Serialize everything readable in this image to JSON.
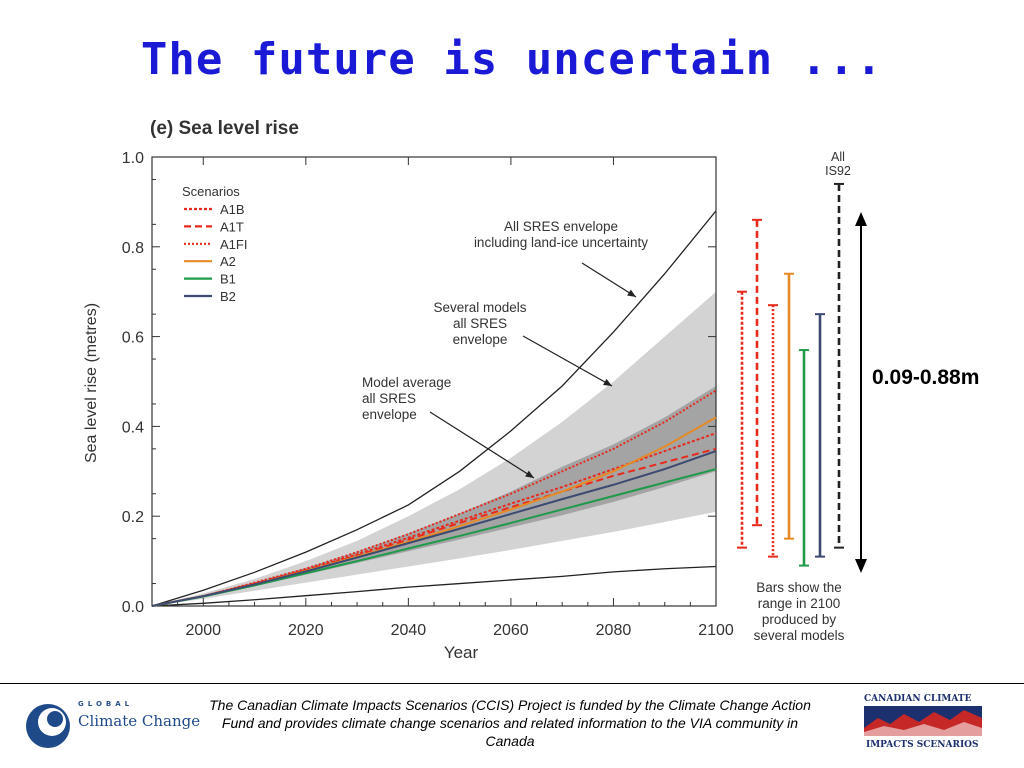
{
  "slide": {
    "title": "The future is uncertain ...",
    "callout_range": "0.09-0.88m",
    "footer": "The Canadian Climate Impacts Scenarios (CCIS) Project is funded by the Climate Change Action Fund and provides climate change scenarios and related information to the VIA community in Canada"
  },
  "logos": {
    "left_small": "GLOBAL",
    "left_main": "Climate Change",
    "right_top": "CANADIAN CLIMATE",
    "right_bottom": "IMPACTS SCENARIOS"
  },
  "chart_data": {
    "type": "line",
    "title": "(e) Sea level rise",
    "xlabel": "Year",
    "ylabel": "Sea level rise (metres)",
    "xlim": [
      1990,
      2100
    ],
    "ylim": [
      0,
      1.0
    ],
    "x_ticks": [
      2000,
      2020,
      2040,
      2060,
      2080,
      2100
    ],
    "y_ticks": [
      0.0,
      0.2,
      0.4,
      0.6,
      0.8,
      1.0
    ],
    "y_tick_labels": [
      "0.0",
      "0.2",
      "0.4",
      "0.6",
      "0.8",
      "1.0"
    ],
    "legend_title": "Scenarios",
    "legend_position": "top-left",
    "x": [
      1990,
      2000,
      2010,
      2020,
      2030,
      2040,
      2050,
      2060,
      2070,
      2080,
      2090,
      2100
    ],
    "series": [
      {
        "name": "A1B",
        "color": "#e8291c",
        "dash": "dotted",
        "values": [
          0,
          0.022,
          0.05,
          0.08,
          0.115,
          0.152,
          0.19,
          0.228,
          0.265,
          0.305,
          0.345,
          0.385
        ]
      },
      {
        "name": "A1T",
        "color": "#e8291c",
        "dash": "dashed",
        "values": [
          0,
          0.022,
          0.05,
          0.08,
          0.112,
          0.148,
          0.185,
          0.22,
          0.255,
          0.29,
          0.32,
          0.35
        ]
      },
      {
        "name": "A1FI",
        "color": "#e8291c",
        "dash": "dotted-fine",
        "values": [
          0,
          0.022,
          0.052,
          0.083,
          0.12,
          0.16,
          0.205,
          0.25,
          0.3,
          0.35,
          0.41,
          0.48
        ]
      },
      {
        "name": "A2",
        "color": "#e58a26",
        "dash": "solid",
        "values": [
          0,
          0.022,
          0.048,
          0.078,
          0.11,
          0.143,
          0.178,
          0.215,
          0.255,
          0.3,
          0.355,
          0.42
        ]
      },
      {
        "name": "B1",
        "color": "#1f9a4a",
        "dash": "solid",
        "values": [
          0,
          0.021,
          0.046,
          0.073,
          0.1,
          0.128,
          0.156,
          0.185,
          0.215,
          0.245,
          0.275,
          0.305
        ]
      },
      {
        "name": "B2",
        "color": "#3d4a72",
        "dash": "solid",
        "values": [
          0,
          0.022,
          0.048,
          0.077,
          0.108,
          0.14,
          0.172,
          0.205,
          0.238,
          0.27,
          0.305,
          0.345
        ]
      }
    ],
    "envelopes": {
      "full_envelope_upper": [
        0,
        0.035,
        0.075,
        0.12,
        0.17,
        0.225,
        0.3,
        0.39,
        0.49,
        0.61,
        0.74,
        0.88
      ],
      "full_envelope_lower": [
        0,
        0.006,
        0.014,
        0.023,
        0.032,
        0.042,
        0.05,
        0.058,
        0.066,
        0.076,
        0.083,
        0.088
      ],
      "several_models_upper": [
        0,
        0.028,
        0.06,
        0.1,
        0.145,
        0.2,
        0.26,
        0.33,
        0.41,
        0.5,
        0.6,
        0.7
      ],
      "several_models_lower": [
        0,
        0.016,
        0.034,
        0.052,
        0.07,
        0.088,
        0.106,
        0.125,
        0.145,
        0.165,
        0.187,
        0.21
      ],
      "model_average_upper": [
        0,
        0.024,
        0.053,
        0.085,
        0.121,
        0.162,
        0.206,
        0.255,
        0.31,
        0.36,
        0.42,
        0.49
      ],
      "model_average_lower": [
        0,
        0.02,
        0.044,
        0.07,
        0.096,
        0.122,
        0.148,
        0.175,
        0.202,
        0.232,
        0.265,
        0.3
      ]
    },
    "annotations": [
      {
        "text": "All SRES envelope including land-ice uncertainty"
      },
      {
        "text": "Several models all SRES envelope"
      },
      {
        "text": "Model average all SRES envelope"
      },
      {
        "text": "Bars show the range in 2100 produced by several models"
      }
    ],
    "range_bars_2100": [
      {
        "name": "A1B",
        "color": "#e8291c",
        "style": "dotted",
        "low": 0.13,
        "high": 0.7
      },
      {
        "name": "A1T",
        "color": "#e8291c",
        "style": "dashed",
        "low": 0.18,
        "high": 0.86
      },
      {
        "name": "A1FI",
        "color": "#e8291c",
        "style": "dotted-fine",
        "low": 0.11,
        "high": 0.67
      },
      {
        "name": "A2",
        "color": "#e58a26",
        "style": "solid",
        "low": 0.15,
        "high": 0.74
      },
      {
        "name": "B1",
        "color": "#1f9a4a",
        "style": "solid",
        "low": 0.09,
        "high": 0.57
      },
      {
        "name": "B2",
        "color": "#3d4a72",
        "style": "solid",
        "low": 0.11,
        "high": 0.65
      },
      {
        "name": "All IS92",
        "color": "#222222",
        "style": "dashed",
        "low": 0.13,
        "high": 0.94
      }
    ],
    "all_is92_label": "All IS92",
    "callout_arrow_range": [
      0.09,
      0.88
    ]
  }
}
